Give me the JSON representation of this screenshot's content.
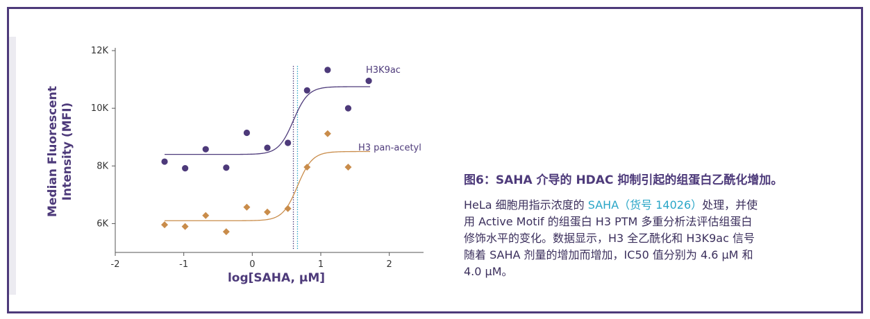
{
  "chart_data": {
    "type": "scatter",
    "xlabel": "log[SAHA, μM]",
    "ylabel_lines": [
      "Median Fluorescent",
      "Intensity (MFI)"
    ],
    "xlim": [
      -2,
      2.5
    ],
    "ylim": [
      5000,
      12000
    ],
    "xticks": [
      -2,
      -1,
      0,
      1,
      2
    ],
    "xtick_labels": [
      "-2",
      "-1",
      "0",
      "1",
      "2"
    ],
    "yticks": [
      6000,
      8000,
      10000,
      12000
    ],
    "ytick_labels": [
      "6K",
      "8K",
      "10K",
      "12K"
    ],
    "series": [
      {
        "name": "H3K9ac",
        "marker": "circle",
        "color": "#4d3a7a",
        "x": [
          -1.28,
          -0.98,
          -0.68,
          -0.38,
          -0.08,
          0.22,
          0.52,
          0.8,
          1.1,
          1.4,
          1.7
        ],
        "y": [
          8150,
          7920,
          8580,
          7940,
          9150,
          8630,
          8800,
          10620,
          11330,
          10000,
          10950
        ],
        "fit": {
          "bottom": 8400,
          "top": 10750,
          "logIC50": 0.6,
          "hill": 4
        }
      },
      {
        "name": "H3 pan-acetyl",
        "marker": "diamond",
        "color": "#c98c4a",
        "x": [
          -1.28,
          -0.98,
          -0.68,
          -0.38,
          -0.08,
          0.22,
          0.52,
          0.8,
          1.1,
          1.4
        ],
        "y": [
          5960,
          5900,
          6280,
          5720,
          6570,
          6400,
          6520,
          7960,
          9120,
          7960
        ],
        "fit": {
          "bottom": 6100,
          "top": 8500,
          "logIC50": 0.66,
          "hill": 4
        }
      }
    ],
    "vlines": [
      {
        "x": 0.6,
        "color": "#4d3a7a"
      },
      {
        "x": 0.66,
        "color": "#2aa6c7"
      }
    ]
  },
  "caption": {
    "title": "图6：SAHA 介导的 HDAC 抑制引起的组蛋白乙酰化增加。",
    "line1_pre": "HeLa 细胞用指示浓度的 ",
    "line1_link": "SAHA（货号 14026）",
    "line1_post": "处理，并使",
    "line2": "用 Active Motif 的组蛋白 H3 PTM 多重分析法评估组蛋白",
    "line3": "修饰水平的变化。数据显示，H3 全乙酰化和 H3K9ac 信号",
    "line4": "随着 SAHA 剂量的增加而增加，IC50 值分别为 4.6 μM 和",
    "line5": "4.0 μM。"
  }
}
